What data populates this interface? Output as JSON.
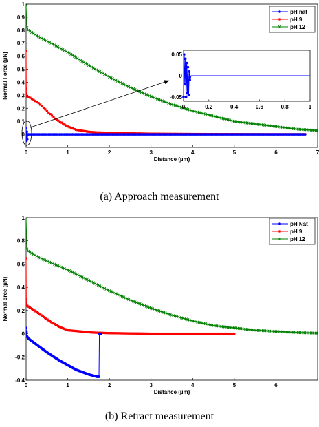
{
  "chart_data": [
    {
      "type": "line",
      "caption": "(a) Approach measurement",
      "xlabel": "Distance (µm)",
      "ylabel": "Normal Force (µN)",
      "xlim": [
        0,
        7
      ],
      "ylim": [
        -0.1,
        1
      ],
      "xticks": [
        "0",
        "1",
        "2",
        "3",
        "4",
        "5",
        "6",
        "7"
      ],
      "yticks": [
        "0",
        "0.1",
        "0.2",
        "0.3",
        "0.4",
        "0.5",
        "0.6",
        "0.7",
        "0.8",
        "0.9",
        "1"
      ],
      "legend_position": "top-right",
      "series": [
        {
          "name": "pH nat",
          "color": "#0000ff",
          "marker": "circle",
          "x": [
            0,
            0.01,
            0.02,
            0.03,
            0.04,
            0.06,
            0.5,
            1,
            2,
            3,
            4,
            5,
            6,
            6.7
          ],
          "y": [
            0.05,
            -0.05,
            0.02,
            -0.04,
            0,
            0,
            0,
            0,
            0,
            0,
            0,
            0,
            0,
            0
          ]
        },
        {
          "name": "pH 9",
          "color": "#ff0000",
          "marker": "square",
          "x": [
            0,
            0.005,
            0.01,
            0.03,
            0.1,
            0.3,
            0.5,
            0.7,
            1.0,
            1.2,
            1.5,
            1.7,
            2.0,
            2.5,
            3.0,
            3.5,
            4.0,
            5.0,
            6.0,
            6.7
          ],
          "y": [
            0.64,
            0.35,
            0.3,
            0.29,
            0.28,
            0.24,
            0.18,
            0.12,
            0.06,
            0.035,
            0.02,
            0.015,
            0.012,
            0.008,
            0.005,
            0.004,
            0.003,
            0.002,
            0.001,
            0.001
          ]
        },
        {
          "name": "pH 12",
          "color": "#008000",
          "marker": "x",
          "x": [
            0,
            0.02,
            0.05,
            0.3,
            0.6,
            1.0,
            1.5,
            2.0,
            2.5,
            3.0,
            3.5,
            4.0,
            4.5,
            5.0,
            5.5,
            6.0,
            6.5,
            7.0
          ],
          "y": [
            0.99,
            0.82,
            0.8,
            0.75,
            0.7,
            0.63,
            0.53,
            0.44,
            0.36,
            0.29,
            0.23,
            0.18,
            0.14,
            0.1,
            0.08,
            0.06,
            0.04,
            0.03
          ]
        }
      ],
      "inset": {
        "xlim": [
          0,
          1
        ],
        "ylim": [
          -0.06,
          0.06
        ],
        "xticks": [
          "0",
          "0.2",
          "0.4",
          "0.6",
          "0.8",
          "1"
        ],
        "yticks": [
          "-0.05",
          "0",
          "0.05"
        ],
        "series_color": "#0000ff",
        "x": [
          0,
          0.005,
          0.01,
          0.015,
          0.02,
          0.025,
          0.03,
          0.035,
          0.04,
          0.045,
          0.05,
          0.06,
          0.1,
          0.3,
          0.5,
          0.7,
          0.9,
          1.0
        ],
        "y": [
          -0.05,
          0.05,
          -0.02,
          0.04,
          -0.05,
          0.03,
          -0.04,
          0.02,
          -0.045,
          0.01,
          -0.01,
          0,
          0,
          0,
          0,
          0,
          0,
          0
        ]
      }
    },
    {
      "type": "line",
      "caption": "(b) Retract measurement",
      "xlabel": "Distance (µm)",
      "ylabel": "Normal orce (µN)",
      "xlim": [
        0,
        7
      ],
      "ylim": [
        -0.4,
        1
      ],
      "xticks": [
        "0",
        "1",
        "2",
        "3",
        "4",
        "5",
        "6"
      ],
      "yticks": [
        "-0.4",
        "-0.2",
        "0",
        "0.2",
        "0.4",
        "0.6",
        "0.8",
        "1"
      ],
      "legend_position": "top-right",
      "series": [
        {
          "name": "pH Nat",
          "color": "#0000ff",
          "marker": "circle",
          "x": [
            0,
            0.02,
            0.05,
            0.2,
            0.5,
            0.8,
            1.0,
            1.2,
            1.5,
            1.7,
            1.75,
            1.76,
            1.8
          ],
          "y": [
            0.05,
            -0.02,
            -0.04,
            -0.08,
            -0.16,
            -0.23,
            -0.27,
            -0.31,
            -0.35,
            -0.37,
            -0.37,
            0,
            0
          ]
        },
        {
          "name": "pH 9",
          "color": "#ff0000",
          "marker": "square",
          "x": [
            0,
            0.005,
            0.01,
            0.03,
            0.2,
            0.4,
            0.6,
            0.8,
            1.0,
            1.3,
            1.6,
            2.0,
            3.0,
            4.0,
            5.0
          ],
          "y": [
            0.65,
            0.3,
            0.25,
            0.24,
            0.2,
            0.15,
            0.1,
            0.06,
            0.03,
            0.02,
            0.01,
            0.005,
            0,
            0,
            0
          ]
        },
        {
          "name": "pH 12",
          "color": "#008000",
          "marker": "x",
          "x": [
            0,
            0.02,
            0.05,
            0.3,
            0.6,
            1.0,
            1.5,
            2.0,
            2.5,
            3.0,
            3.5,
            4.0,
            4.5,
            5.0,
            5.5,
            6.0,
            6.5,
            7.0
          ],
          "y": [
            1.0,
            0.73,
            0.71,
            0.66,
            0.61,
            0.55,
            0.46,
            0.37,
            0.29,
            0.22,
            0.16,
            0.11,
            0.07,
            0.05,
            0.03,
            0.02,
            0.01,
            0.005
          ]
        }
      ]
    }
  ]
}
